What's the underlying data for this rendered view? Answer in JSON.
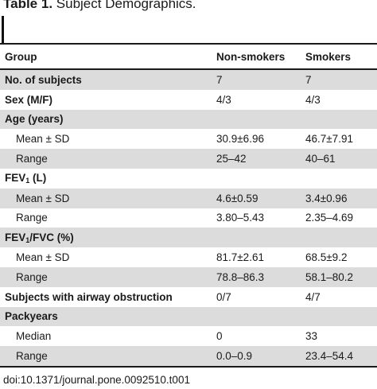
{
  "caption": {
    "label": "Table 1.",
    "title": "Subject Demographics."
  },
  "table": {
    "headers": [
      "Group",
      "Non-smokers",
      "Smokers"
    ],
    "rows": [
      {
        "label": "No. of subjects",
        "nonsmokers": "7",
        "smokers": "7",
        "bold": true
      },
      {
        "label": "Sex (M/F)",
        "nonsmokers": "4/3",
        "smokers": "4/3",
        "bold": true
      },
      {
        "label": "Age (years)",
        "nonsmokers": "",
        "smokers": "",
        "bold": true
      },
      {
        "label": "Mean ± SD",
        "nonsmokers": "30.9±6.96",
        "smokers": "46.7±7.91",
        "bold": false
      },
      {
        "label": "Range",
        "nonsmokers": "25–42",
        "smokers": "40–61",
        "bold": false
      },
      {
        "label": "FEV",
        "label_sub": "1",
        "label_suffix": " (L)",
        "nonsmokers": "",
        "smokers": "",
        "bold": true
      },
      {
        "label": "Mean ± SD",
        "nonsmokers": "4.6±0.59",
        "smokers": "3.4±0.96",
        "bold": false
      },
      {
        "label": "Range",
        "nonsmokers": "3.80–5.43",
        "smokers": "2.35–4.69",
        "bold": false
      },
      {
        "label": "FEV",
        "label_sub": "1",
        "label_suffix": "/FVC (%)",
        "nonsmokers": "",
        "smokers": "",
        "bold": true
      },
      {
        "label": "Mean ± SD",
        "nonsmokers": "81.7±2.61",
        "smokers": "68.5±9.2",
        "bold": false
      },
      {
        "label": "Range",
        "nonsmokers": "78.8–86.3",
        "smokers": "58.1–80.2",
        "bold": false
      },
      {
        "label": "Subjects with airway obstruction",
        "nonsmokers": "0/7",
        "smokers": "4/7",
        "bold": true
      },
      {
        "label": "Packyears",
        "nonsmokers": "",
        "smokers": "",
        "bold": true
      },
      {
        "label": "Median",
        "nonsmokers": "0",
        "smokers": "33",
        "bold": false
      },
      {
        "label": "Range",
        "nonsmokers": "0.0–0.9",
        "smokers": "23.4–54.4",
        "bold": false
      }
    ]
  },
  "footer": {
    "doi": "doi:10.1371/journal.pone.0092510.t001"
  },
  "colors": {
    "shaded_row": "#dcdcdc",
    "rule": "#1a1a1a"
  }
}
